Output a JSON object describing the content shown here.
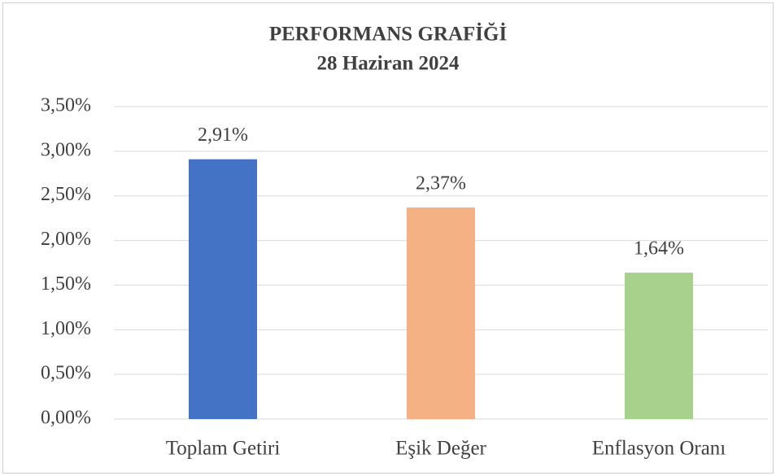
{
  "chart_data": {
    "type": "bar",
    "title": "PERFORMANS GRAFİĞİ",
    "subtitle": "28 Haziran  2024",
    "categories": [
      "Toplam Getiri",
      "Eşik Değer",
      "Enflasyon Oranı"
    ],
    "values": [
      2.91,
      2.37,
      1.64
    ],
    "value_labels": [
      "2,91%",
      "2,37%",
      "1,64%"
    ],
    "colors": [
      "#4472c4",
      "#f4b183",
      "#a9d18e"
    ],
    "ylim": [
      0,
      3.5
    ],
    "yticks": [
      {
        "value": 0,
        "label": "0,00%"
      },
      {
        "value": 0.5,
        "label": "0,50%"
      },
      {
        "value": 1,
        "label": "1,00%"
      },
      {
        "value": 1.5,
        "label": "1,50%"
      },
      {
        "value": 2,
        "label": "2,00%"
      },
      {
        "value": 2.5,
        "label": "2,50%"
      },
      {
        "value": 3,
        "label": "3,00%"
      },
      {
        "value": 3.5,
        "label": "3,50%"
      }
    ],
    "grid": true
  }
}
